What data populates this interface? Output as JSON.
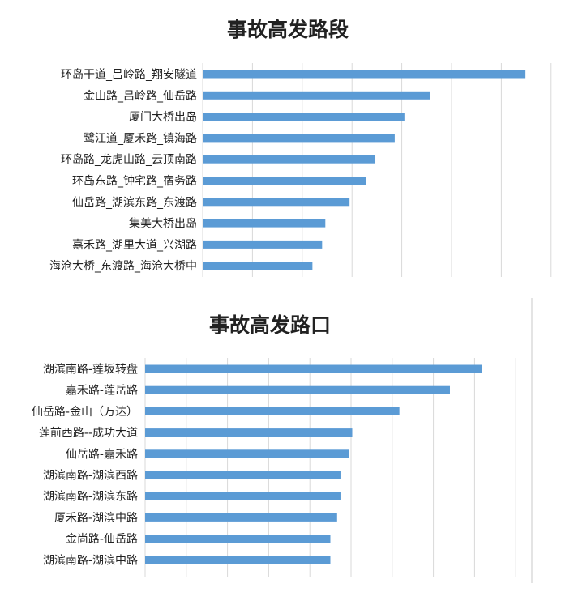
{
  "colors": {
    "bar": "#5b9bd5",
    "grid": "#d9d9d9",
    "text": "#222222"
  },
  "chart_data": [
    {
      "type": "bar",
      "orientation": "horizontal",
      "title": "事故高发路段",
      "categories": [
        "环岛干道_吕岭路_翔安隧道",
        "金山路_吕岭路_仙岳路",
        "厦门大桥出岛",
        "鹭江道_厦禾路_镇海路",
        "环岛路_龙虎山路_云顶南路",
        "环岛东路_钟宅路_宿务路",
        "仙岳路_湖滨东路_东渡路",
        "集美大桥出岛",
        "嘉禾路_湖里大道_兴湖路",
        "海沧大桥_东渡路_海沧大桥中"
      ],
      "values": [
        100,
        70.5,
        62.5,
        59.5,
        53.5,
        50.5,
        45.5,
        38,
        37,
        34
      ],
      "xlim": [
        0,
        108
      ],
      "grid": true,
      "legend": "none"
    },
    {
      "type": "bar",
      "orientation": "horizontal",
      "title": "事故高发路口",
      "categories": [
        "湖滨南路-莲坂转盘",
        "嘉禾路-莲岳路",
        "仙岳路-金山（万达）",
        "莲前西路--成功大道",
        "仙岳路-嘉禾路",
        "湖滨南路-湖滨西路",
        "湖滨南路-湖滨东路",
        "厦禾路-湖滨中路",
        "金尚路-仙岳路",
        "湖滨南路-湖滨中路"
      ],
      "values": [
        100,
        90.5,
        75.5,
        61.5,
        60.5,
        58,
        58,
        57,
        55,
        55
      ],
      "xlim": [
        0,
        110
      ],
      "grid": true,
      "legend": "none"
    }
  ]
}
